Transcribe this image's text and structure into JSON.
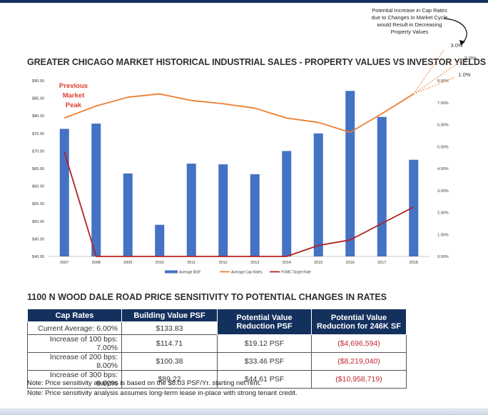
{
  "annotation": {
    "note": "Potential Increase in Cap Rates due to Changes in Market Cycle would Result in Decreasing Property Values",
    "peak_label": "Previous Market Peak",
    "projections": [
      "3.0%",
      "2.0%",
      "1.0%"
    ]
  },
  "chart_data": {
    "type": "bar",
    "title": "GREATER CHICAGO MARKET HISTORICAL INDUSTRIAL SALES - PROPERTY VALUES VS INVESTOR YIELDS",
    "categories": [
      "2007",
      "2008",
      "2009",
      "2010",
      "2011",
      "2012",
      "2013",
      "2014",
      "2015",
      "2016",
      "2017",
      "2018"
    ],
    "y_left": {
      "ylim": [
        40,
        90
      ],
      "ticks": [
        "$40.00",
        "$45.00",
        "$50.00",
        "$55.00",
        "$60.00",
        "$65.00",
        "$70.00",
        "$75.00",
        "$80.00",
        "$85.00",
        "$90.00"
      ]
    },
    "y_right": {
      "ylim": [
        0,
        8
      ],
      "ticks": [
        "0.00%",
        "1.00%",
        "2.00%",
        "3.00%",
        "4.00%",
        "5.00%",
        "6.00%",
        "7.00%",
        "8.00%"
      ]
    },
    "series": [
      {
        "name": "Average $/SF",
        "type": "bar",
        "axis": "left",
        "color": "#4472c4",
        "values": [
          76.3,
          77.8,
          63.6,
          49.0,
          66.4,
          66.2,
          63.4,
          70.0,
          75.0,
          87.1,
          79.7,
          67.5
        ]
      },
      {
        "name": "Average Cap Rates",
        "type": "line",
        "axis": "right",
        "color": "#ed7d31",
        "values": [
          6.3,
          6.85,
          7.25,
          7.4,
          7.1,
          6.95,
          6.75,
          6.3,
          6.1,
          5.65,
          6.5,
          7.4
        ]
      },
      {
        "name": "FOMC Target Rate",
        "type": "line",
        "axis": "right",
        "color": "#b22222",
        "values": [
          4.75,
          0.0,
          0.0,
          0.0,
          0.0,
          0.0,
          0.0,
          0.0,
          0.5,
          0.75,
          1.5,
          2.25
        ]
      }
    ]
  },
  "table": {
    "title": "1100 N WOOD DALE ROAD PRICE SENSITIVITY TO POTENTIAL CHANGES IN RATES",
    "headers": [
      "Cap Rates",
      "Building Value PSF",
      "Potential Value Reduction PSF",
      "Potential Value Reduction for 246K SF"
    ],
    "rows": [
      [
        "Current Average: 6.00%",
        "$133.83",
        "",
        ""
      ],
      [
        "Increase of 100 bps: 7.00%",
        "$114.71",
        "$19.12 PSF",
        "($4,696,594)"
      ],
      [
        "Increase of 200 bps: 8.00%",
        "$100.38",
        "$33.46 PSF",
        "($8,219,040)"
      ],
      [
        "Increase of 300 bps: 9.00%",
        "$89.22",
        "$44.61 PSF",
        "($10,958,719)"
      ]
    ]
  },
  "notes": [
    "Note: Price sensitivity analysis is based on the $8.03 PSF/Yr. starting net rent.",
    "Note: Price sensitivity analysis assumes long-term lease in-place with strong tenant credit."
  ]
}
